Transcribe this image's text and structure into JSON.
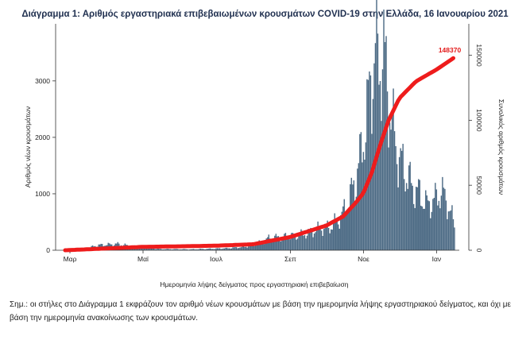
{
  "figure": {
    "title": "Διάγραμμα 1: Αριθμός εργαστηριακά επιβεβαιωμένων κρουσμάτων COVID-19 στην Ελλάδα, 16 Ιανουαρίου 2021",
    "note": "Σημ.: οι στήλες στο Διάγραμμα 1 εκφράζουν τον αριθμό νέων κρουσμάτων με βάση την ημερομηνία λήψης εργαστηριακού δείγματος, και όχι με βάση την ημερομηνία ανακοίνωσης των κρουσμάτων."
  },
  "chart_data": {
    "type": "bar+line",
    "xlabel": "Ημερομηνία λήψης δείγματος προς εργαστηριακή επιβεβαίωση",
    "ylabel_left": "Αριθμός νέων κρουσμάτων",
    "ylabel_right": "Συνολικός αριθμός κρουσμάτων",
    "ylim_left": [
      0,
      3800
    ],
    "ylim_right": [
      0,
      165000
    ],
    "yticks_left": [
      "0",
      "1000",
      "2000",
      "3000"
    ],
    "yticks_right": [
      "0",
      "50000",
      "100000",
      "150000"
    ],
    "x_start": "2020-02-26",
    "x_end": "2021-01-16",
    "xticks": [
      {
        "label": "Μαρ",
        "date": "2020-03-01"
      },
      {
        "label": "Μαϊ",
        "date": "2020-05-01"
      },
      {
        "label": "Ιουλ",
        "date": "2020-07-01"
      },
      {
        "label": "Σεπ",
        "date": "2020-09-01"
      },
      {
        "label": "Νοε",
        "date": "2020-11-01"
      },
      {
        "label": "Ιαν",
        "date": "2021-01-01"
      }
    ],
    "bar_color": "#4d6b85",
    "line_color": "#ee1c1c",
    "annotations": [
      {
        "label": "148370",
        "date": "2021-01-16",
        "value": 148370
      }
    ],
    "daily_cases_series": {
      "name": "Νέα κρούσματα",
      "anchors": [
        [
          "2020-02-26",
          2
        ],
        [
          "2020-03-15",
          40
        ],
        [
          "2020-03-25",
          90
        ],
        [
          "2020-04-10",
          110
        ],
        [
          "2020-04-25",
          60
        ],
        [
          "2020-05-15",
          20
        ],
        [
          "2020-06-10",
          15
        ],
        [
          "2020-06-25",
          25
        ],
        [
          "2020-07-10",
          35
        ],
        [
          "2020-07-25",
          60
        ],
        [
          "2020-08-05",
          120
        ],
        [
          "2020-08-15",
          220
        ],
        [
          "2020-08-25",
          230
        ],
        [
          "2020-09-05",
          260
        ],
        [
          "2020-09-15",
          300
        ],
        [
          "2020-09-25",
          380
        ],
        [
          "2020-10-05",
          420
        ],
        [
          "2020-10-15",
          650
        ],
        [
          "2020-10-20",
          900
        ],
        [
          "2020-10-25",
          1200
        ],
        [
          "2020-10-30",
          1700
        ],
        [
          "2020-11-04",
          2400
        ],
        [
          "2020-11-08",
          3100
        ],
        [
          "2020-11-11",
          3550
        ],
        [
          "2020-11-14",
          3300
        ],
        [
          "2020-11-18",
          3450
        ],
        [
          "2020-11-22",
          2700
        ],
        [
          "2020-11-26",
          2100
        ],
        [
          "2020-12-01",
          1600
        ],
        [
          "2020-12-06",
          1400
        ],
        [
          "2020-12-12",
          1100
        ],
        [
          "2020-12-18",
          1000
        ],
        [
          "2020-12-24",
          800
        ],
        [
          "2020-12-31",
          900
        ],
        [
          "2021-01-05",
          1050
        ],
        [
          "2021-01-10",
          850
        ],
        [
          "2021-01-16",
          450
        ]
      ]
    },
    "cumulative_series": {
      "name": "Συνολικά κρούσματα",
      "anchors": [
        [
          "2020-02-26",
          0
        ],
        [
          "2020-04-01",
          1400
        ],
        [
          "2020-05-01",
          2600
        ],
        [
          "2020-06-01",
          3000
        ],
        [
          "2020-07-01",
          3500
        ],
        [
          "2020-08-01",
          4600
        ],
        [
          "2020-09-01",
          10200
        ],
        [
          "2020-10-01",
          19000
        ],
        [
          "2020-10-15",
          26000
        ],
        [
          "2020-10-25",
          36000
        ],
        [
          "2020-11-01",
          44000
        ],
        [
          "2020-11-08",
          60000
        ],
        [
          "2020-11-15",
          81000
        ],
        [
          "2020-11-22",
          100000
        ],
        [
          "2020-12-01",
          117000
        ],
        [
          "2020-12-15",
          130000
        ],
        [
          "2021-01-01",
          139000
        ],
        [
          "2021-01-16",
          148370
        ]
      ]
    }
  }
}
